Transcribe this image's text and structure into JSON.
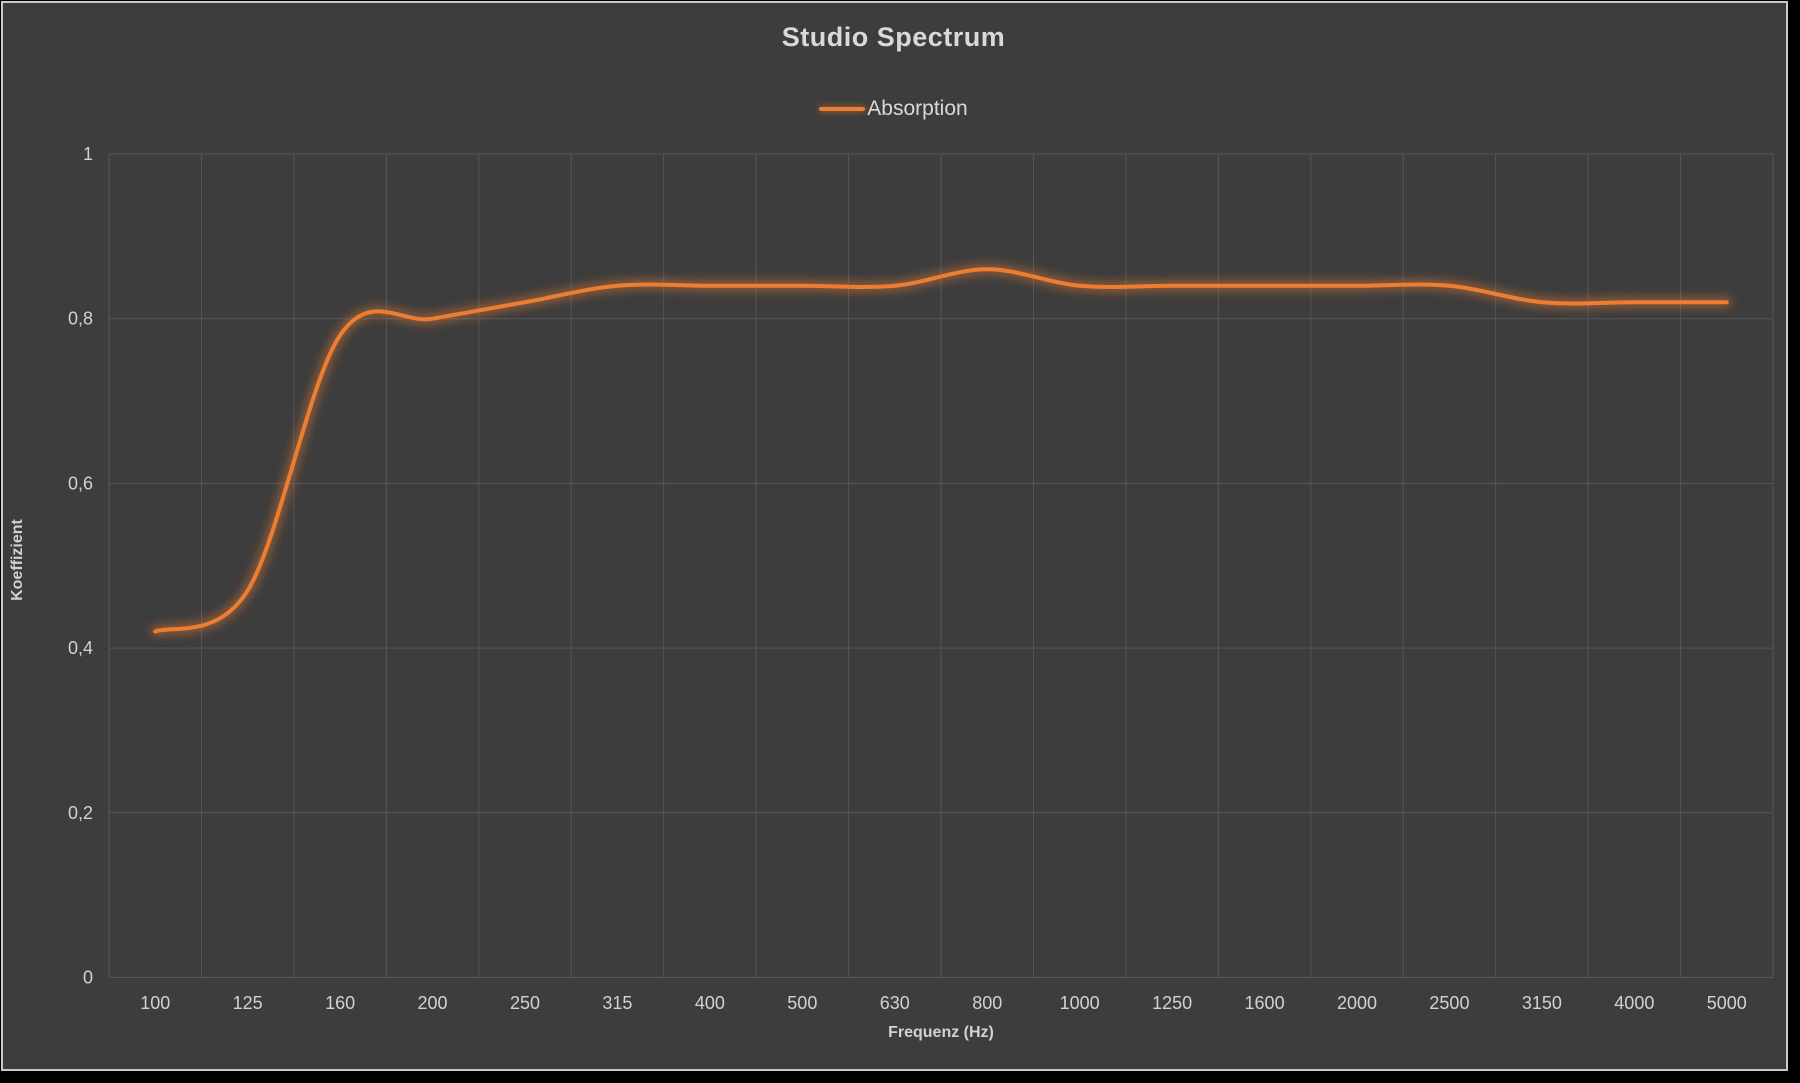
{
  "chart_data": {
    "type": "line",
    "title": "Studio Spectrum",
    "xlabel": "Frequenz (Hz)",
    "ylabel": "Koeffizient",
    "categories": [
      "100",
      "125",
      "160",
      "200",
      "250",
      "315",
      "400",
      "500",
      "630",
      "800",
      "1000",
      "1250",
      "1600",
      "2000",
      "2500",
      "3150",
      "4000",
      "5000"
    ],
    "series": [
      {
        "name": "Absorption",
        "color": "#ED7D31",
        "values": [
          0.42,
          0.47,
          0.78,
          0.8,
          0.82,
          0.84,
          0.84,
          0.84,
          0.84,
          0.86,
          0.84,
          0.84,
          0.84,
          0.84,
          0.84,
          0.82,
          0.82,
          0.82
        ]
      }
    ],
    "ylim": [
      0,
      1
    ],
    "yticks": [
      0,
      0.2,
      0.4,
      0.6,
      0.8,
      1
    ],
    "ytick_labels": [
      "0",
      "0,2",
      "0,4",
      "0,6",
      "0,8",
      "1"
    ],
    "grid": "both",
    "legend_position": "top",
    "smooth": true
  },
  "colors": {
    "background": "#3d3d3d",
    "frame_border": "#c9c9c9",
    "outer": "#000000",
    "gridline": "#565656",
    "text": "#d2d2d2",
    "title_text": "#d9d9d9",
    "accent": "#ED7D31"
  }
}
